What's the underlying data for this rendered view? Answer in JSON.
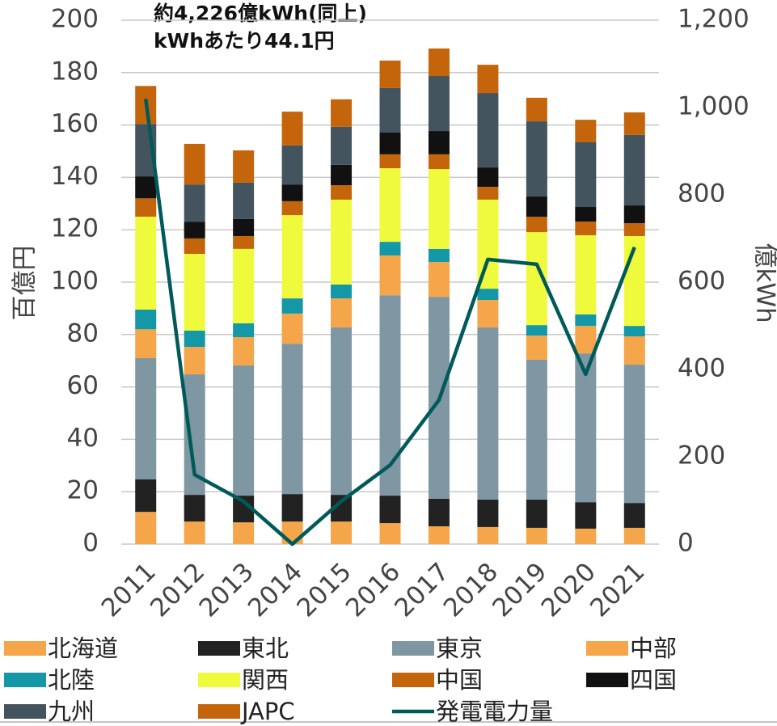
{
  "chart_data": {
    "type": "bar",
    "stacked": true,
    "annotations": [
      "約4,226億kWh(同上)",
      "kWhあたり44.1円"
    ],
    "ylabel": "百億円",
    "y2label": "億kWh",
    "categories": [
      "2011",
      "2012",
      "2013",
      "2014",
      "2015",
      "2016",
      "2017",
      "2018",
      "2019",
      "2020",
      "2021"
    ],
    "ylim": [
      0,
      200
    ],
    "yticks": [
      0,
      20,
      40,
      60,
      80,
      100,
      120,
      140,
      160,
      180,
      200
    ],
    "y2lim": [
      0,
      1200
    ],
    "y2ticks": [
      0,
      200,
      400,
      600,
      800,
      {
        "value": 1000,
        "label": "1,000"
      },
      {
        "value": 1200,
        "label": "1,200"
      }
    ],
    "grid": true,
    "series": [
      {
        "name": "北海道",
        "color": "#f5a54a",
        "values": [
          12.3,
          8.6,
          8.3,
          8.6,
          8.6,
          8,
          6.8,
          6.5,
          6.2,
          5.9,
          6.2
        ]
      },
      {
        "name": "東北",
        "color": "#222222",
        "values": [
          12.4,
          10.2,
          10.2,
          10.5,
          10.2,
          10.5,
          10.5,
          10.5,
          10.8,
          10.1,
          9.5
        ]
      },
      {
        "name": "東京",
        "color": "#7f97a3",
        "values": [
          46.3,
          46,
          49.7,
          57.4,
          63.9,
          76.5,
          77.1,
          65.7,
          53.4,
          56.8,
          52.8
        ]
      },
      {
        "name": "中部",
        "color": "#f5a54a",
        "values": [
          11,
          10.5,
          10.8,
          11.5,
          11.1,
          15.2,
          13.3,
          10.5,
          9.2,
          10.5,
          10.8
        ]
      },
      {
        "name": "北陸",
        "color": "#1497a6",
        "values": [
          7.5,
          6.2,
          5.3,
          5.8,
          5.3,
          5.2,
          5,
          4.3,
          4,
          4.4,
          4
        ]
      },
      {
        "name": "関西",
        "color": "#f0fa3c",
        "values": [
          35.5,
          29.3,
          28.4,
          31.8,
          32.4,
          28.1,
          30.5,
          34,
          35.5,
          30.2,
          34.3
        ]
      },
      {
        "name": "中国",
        "color": "#c4650c",
        "values": [
          7,
          5.9,
          4.9,
          5.3,
          5.5,
          5.3,
          5.6,
          4.9,
          5.9,
          5.2,
          4.9
        ]
      },
      {
        "name": "四国",
        "color": "#111111",
        "values": [
          8.4,
          6.4,
          6.5,
          6.4,
          7.8,
          8.3,
          8.9,
          7.4,
          7.7,
          5.6,
          6.8
        ]
      },
      {
        "name": "九州",
        "color": "#44545e",
        "values": [
          20,
          14.2,
          13.9,
          14.9,
          14.5,
          17,
          21,
          28.4,
          28.7,
          24.7,
          26.9
        ]
      },
      {
        "name": "JAPC",
        "color": "#c4650c",
        "values": [
          14.5,
          15.5,
          12.3,
          12.9,
          10.5,
          10.5,
          10.5,
          10.8,
          9,
          8.6,
          8.6
        ]
      },
      {
        "name": "発電電力量",
        "color": "#005a5a",
        "type": "line",
        "axis": "y2",
        "values": [
          1020,
          159,
          98,
          0,
          98,
          181,
          330,
          652,
          641,
          389,
          680
        ]
      }
    ]
  }
}
